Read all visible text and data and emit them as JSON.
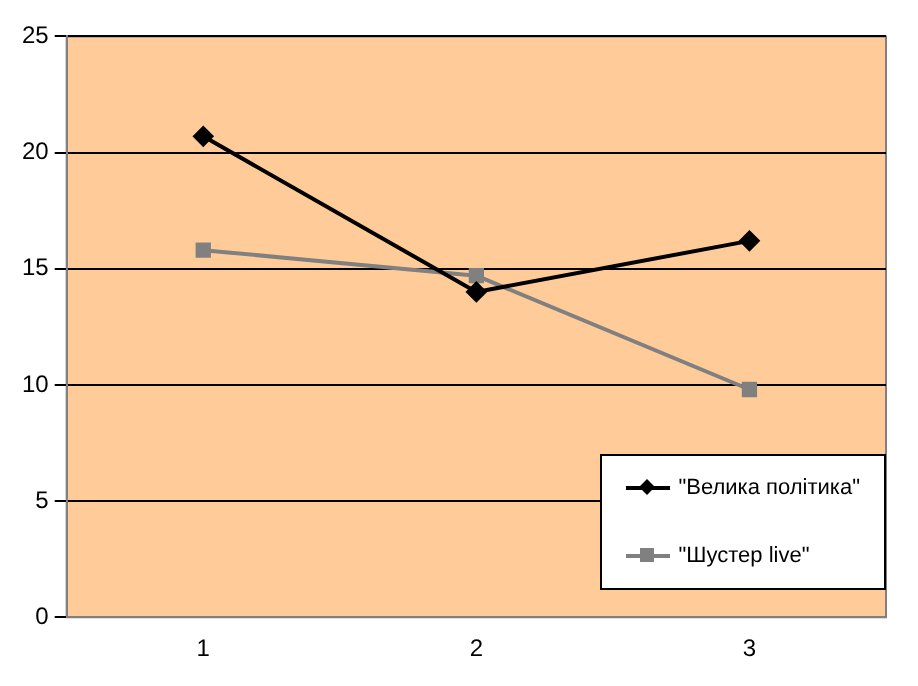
{
  "chart_data": {
    "type": "line",
    "categories": [
      "1",
      "2",
      "3"
    ],
    "series": [
      {
        "name": "\"Велика політика\"",
        "color": "#000000",
        "marker": "diamond",
        "values": [
          20.7,
          14,
          16.2
        ]
      },
      {
        "name": "\"Шустер live\"",
        "color": "#808080",
        "marker": "square",
        "values": [
          15.8,
          14.7,
          9.8
        ]
      }
    ],
    "ylim": [
      0,
      25
    ],
    "yticks": [
      0,
      5,
      10,
      15,
      20,
      25
    ],
    "grid": "y",
    "legend": "bottom right",
    "line_style": "solid"
  }
}
